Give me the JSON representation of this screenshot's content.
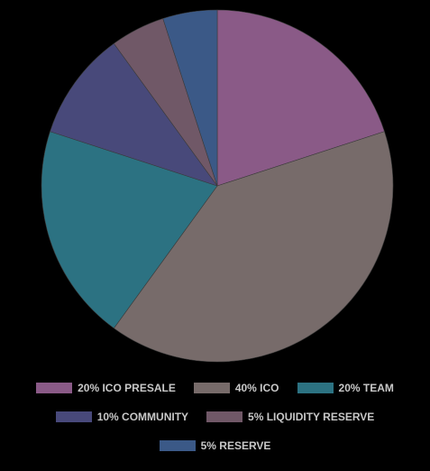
{
  "chart_data": {
    "type": "pie",
    "slices": [
      {
        "label": "20% ICO PRESALE",
        "value": 20,
        "color": "#8a5a87"
      },
      {
        "label": "40% ICO",
        "value": 40,
        "color": "#776b6a"
      },
      {
        "label": "20% TEAM",
        "value": 20,
        "color": "#2c7282"
      },
      {
        "label": "10% COMMUNITY",
        "value": 10,
        "color": "#48497a"
      },
      {
        "label": "5% LIQUIDITY RESERVE",
        "value": 5,
        "color": "#705867"
      },
      {
        "label": "5% RESERVE",
        "value": 5,
        "color": "#3b5987"
      }
    ],
    "legend_rows": [
      [
        0,
        1,
        2
      ],
      [
        3,
        4
      ],
      [
        5
      ]
    ],
    "legend_position": "bottom",
    "start_angle_deg": 0,
    "direction": "clockwise"
  }
}
